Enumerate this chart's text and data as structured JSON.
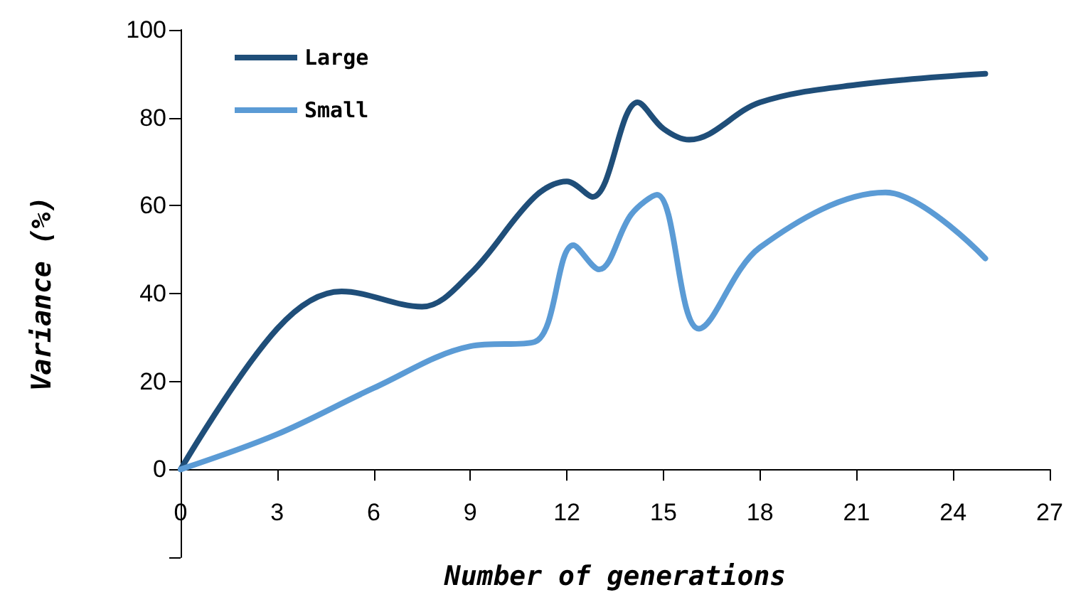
{
  "chart_data": {
    "type": "line",
    "xlabel": "Number of generations",
    "ylabel": "Variance (%)",
    "xlim": [
      0,
      27
    ],
    "xticks": [
      0,
      3,
      6,
      9,
      12,
      15,
      18,
      21,
      24,
      27
    ],
    "ylim": [
      -20,
      100
    ],
    "yticks": [
      {
        "value": -20,
        "label": null
      },
      0,
      20,
      40,
      60,
      80,
      100
    ],
    "legend": "top left",
    "marker": "none",
    "line_style": "solid",
    "series": [
      {
        "name": "Large",
        "color": "#1f4e79",
        "x": [
          0,
          3,
          5,
          7.5,
          9,
          11,
          12,
          12.8,
          14.2,
          15,
          15.8,
          18,
          21,
          25
        ],
        "values": [
          0,
          32,
          40.5,
          37,
          44.5,
          62,
          65.5,
          62,
          83.5,
          77.5,
          75,
          83.5,
          87.5,
          90
        ]
      },
      {
        "name": "Small",
        "color": "#5b9bd5",
        "x": [
          0,
          3,
          6,
          9,
          11,
          12.2,
          13,
          14,
          14.8,
          16.1,
          18,
          21.9,
          25
        ],
        "values": [
          0,
          8,
          18.5,
          28,
          29,
          51,
          45.5,
          58,
          62.5,
          32,
          50.5,
          63,
          48
        ]
      }
    ]
  }
}
